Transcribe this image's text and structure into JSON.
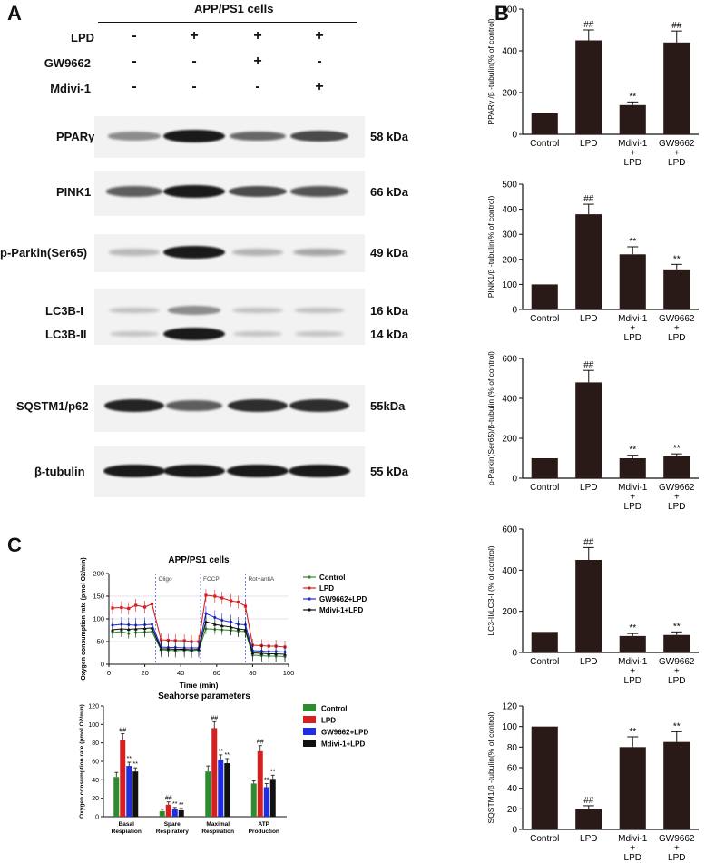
{
  "panels": {
    "a": "A",
    "b": "B",
    "c": "C"
  },
  "panel_a": {
    "cell_line": "APP/PS1 cells",
    "treatments": [
      {
        "name": "LPD",
        "signs": [
          "-",
          "+",
          "+",
          "+"
        ]
      },
      {
        "name": "GW9662",
        "signs": [
          "-",
          "-",
          "+",
          "-"
        ]
      },
      {
        "name": "Mdivi-1",
        "signs": [
          "-",
          "-",
          "-",
          "+"
        ]
      }
    ],
    "blots": [
      {
        "protein": "PPARγ",
        "kda": "58 kDa",
        "intensity": [
          0.35,
          0.95,
          0.55,
          0.7
        ]
      },
      {
        "protein": "PINK1",
        "kda": "66 kDa",
        "intensity": [
          0.6,
          0.95,
          0.7,
          0.65
        ]
      },
      {
        "protein": "p-Parkin(Ser65)",
        "kda": "49 kDa",
        "intensity": [
          0.12,
          0.95,
          0.15,
          0.22
        ]
      },
      {
        "protein": "LC3B-I",
        "kda": "16 kDa",
        "intensity": [
          0.08,
          0.35,
          0.08,
          0.08
        ]
      },
      {
        "protein": "LC3B-II",
        "kda": "14 kDa",
        "intensity": [
          0.06,
          0.95,
          0.06,
          0.06
        ]
      },
      {
        "protein": "SQSTM1/p62",
        "kda": "55kDa",
        "intensity": [
          0.9,
          0.6,
          0.85,
          0.85
        ]
      },
      {
        "protein": "β-tubulin",
        "kda": "55 kDa",
        "intensity": [
          0.95,
          0.95,
          0.95,
          0.95
        ]
      }
    ]
  },
  "chart_data": [
    {
      "type": "bar",
      "panel": "B",
      "categories": [
        "Control",
        "LPD",
        "Mdivi-1 + LPD",
        "GW9662 + LPD"
      ],
      "values": [
        100,
        450,
        140,
        440
      ],
      "errors": [
        0,
        50,
        15,
        55
      ],
      "annotations": [
        "",
        "##",
        "**",
        "##"
      ],
      "ylabel": "PPARγ /β -tubulin(% of control)",
      "ylim": [
        0,
        600
      ],
      "yticks": [
        0,
        200,
        400,
        600
      ]
    },
    {
      "type": "bar",
      "panel": "B",
      "categories": [
        "Control",
        "LPD",
        "Mdivi-1 + LPD",
        "GW9662 + LPD"
      ],
      "values": [
        100,
        380,
        220,
        160
      ],
      "errors": [
        0,
        40,
        30,
        20
      ],
      "annotations": [
        "",
        "##",
        "**",
        "**"
      ],
      "ylabel": "PINK1/β -tubulin(% of control)",
      "ylim": [
        0,
        500
      ],
      "yticks": [
        0,
        100,
        200,
        300,
        400,
        500
      ]
    },
    {
      "type": "bar",
      "panel": "B",
      "categories": [
        "Control",
        "LPD",
        "Mdivi-1 + LPD",
        "GW9662 + LPD"
      ],
      "values": [
        100,
        480,
        100,
        110
      ],
      "errors": [
        0,
        60,
        15,
        12
      ],
      "annotations": [
        "",
        "##",
        "**",
        "**"
      ],
      "ylabel": "p-Parkin(Ser65)/β-tubulin (% of control)",
      "ylim": [
        0,
        600
      ],
      "yticks": [
        0,
        200,
        400,
        600
      ]
    },
    {
      "type": "bar",
      "panel": "B",
      "categories": [
        "Control",
        "LPD",
        "Mdivi-1 + LPD",
        "GW9662 + LPD"
      ],
      "values": [
        100,
        450,
        80,
        85
      ],
      "errors": [
        0,
        60,
        12,
        15
      ],
      "annotations": [
        "",
        "##",
        "**",
        "**"
      ],
      "ylabel": "LC3-II/LC3-I (% of control)",
      "ylim": [
        0,
        600
      ],
      "yticks": [
        0,
        200,
        400,
        600
      ]
    },
    {
      "type": "bar",
      "panel": "B",
      "categories": [
        "Control",
        "LPD",
        "Mdivi-1 + LPD",
        "GW9662 + LPD"
      ],
      "values": [
        100,
        20,
        80,
        85
      ],
      "errors": [
        0,
        3,
        10,
        10
      ],
      "annotations": [
        "",
        "##",
        "**",
        "**"
      ],
      "ylabel": "SQSTM1/β -tubulin(% of control)",
      "ylim": [
        0,
        120
      ],
      "yticks": [
        0,
        20,
        40,
        60,
        80,
        100,
        120
      ]
    },
    {
      "type": "line",
      "panel": "C",
      "title": "APP/PS1 cells",
      "xlabel": "Time (min)",
      "ylabel": "Oxygen consumption rate (pmol O2/min)",
      "xlim": [
        0,
        100
      ],
      "ylim": [
        0,
        200
      ],
      "xticks": [
        0,
        20,
        40,
        60,
        80,
        100
      ],
      "injections": [
        {
          "label": "Oligo",
          "x": 26
        },
        {
          "label": "FCCP",
          "x": 51
        },
        {
          "label": "Rot+antiA",
          "x": 76
        }
      ],
      "x": [
        2,
        7,
        11,
        15,
        20,
        24,
        29,
        33,
        37,
        42,
        46,
        50,
        54,
        59,
        63,
        68,
        72,
        76,
        80,
        85,
        89,
        93,
        98
      ],
      "series": [
        {
          "name": "Control",
          "color": "#2e8b2e",
          "values": [
            70,
            72,
            68,
            70,
            71,
            72,
            32,
            31,
            30,
            31,
            30,
            31,
            78,
            77,
            76,
            75,
            73,
            72,
            20,
            19,
            18,
            18,
            17
          ]
        },
        {
          "name": "LPD",
          "color": "#d62020",
          "values": [
            124,
            125,
            123,
            130,
            126,
            133,
            54,
            53,
            52,
            52,
            50,
            50,
            152,
            150,
            146,
            140,
            137,
            128,
            42,
            41,
            40,
            40,
            38
          ]
        },
        {
          "name": "GW9662+LPD",
          "color": "#1f2fe0",
          "values": [
            86,
            88,
            87,
            86,
            87,
            88,
            38,
            37,
            37,
            36,
            36,
            36,
            112,
            103,
            97,
            93,
            88,
            87,
            30,
            29,
            28,
            28,
            27
          ]
        },
        {
          "name": "Mdivi-1+LPD",
          "color": "#111111",
          "values": [
            76,
            78,
            77,
            78,
            79,
            80,
            34,
            34,
            33,
            33,
            32,
            33,
            94,
            88,
            85,
            82,
            78,
            76,
            25,
            24,
            23,
            23,
            22
          ]
        }
      ]
    },
    {
      "type": "bar",
      "panel": "C",
      "title": "Seahorse parameters",
      "ylabel": "Oxygen consumption rate (pmol O2/min)",
      "ylim": [
        0,
        120
      ],
      "yticks": [
        0,
        20,
        40,
        60,
        80,
        100,
        120
      ],
      "categories": [
        "Basal Respiation",
        "Spare Respiratory",
        "Maximal Respiration",
        "ATP Production"
      ],
      "series": [
        {
          "name": "Control",
          "color": "#2e8b2e",
          "values": [
            43,
            6,
            49,
            36
          ],
          "errors": [
            5,
            2,
            6,
            3
          ]
        },
        {
          "name": "LPD",
          "color": "#d62020",
          "values": [
            83,
            13,
            96,
            71
          ],
          "errors": [
            7,
            3,
            7,
            6
          ]
        },
        {
          "name": "GW9662+LPD",
          "color": "#1f2fe0",
          "values": [
            55,
            8,
            62,
            32
          ],
          "errors": [
            4,
            2,
            5,
            4
          ]
        },
        {
          "name": "Mdivi-1+LPD",
          "color": "#111111",
          "values": [
            49,
            7,
            58,
            41
          ],
          "errors": [
            4,
            2,
            5,
            4
          ]
        }
      ],
      "annotations": [
        [
          "",
          "##",
          "**",
          "**"
        ],
        [
          "",
          "##",
          "**",
          "**"
        ],
        [
          "",
          "##",
          "**",
          "**"
        ],
        [
          "",
          "##",
          "**",
          "**"
        ]
      ]
    }
  ]
}
